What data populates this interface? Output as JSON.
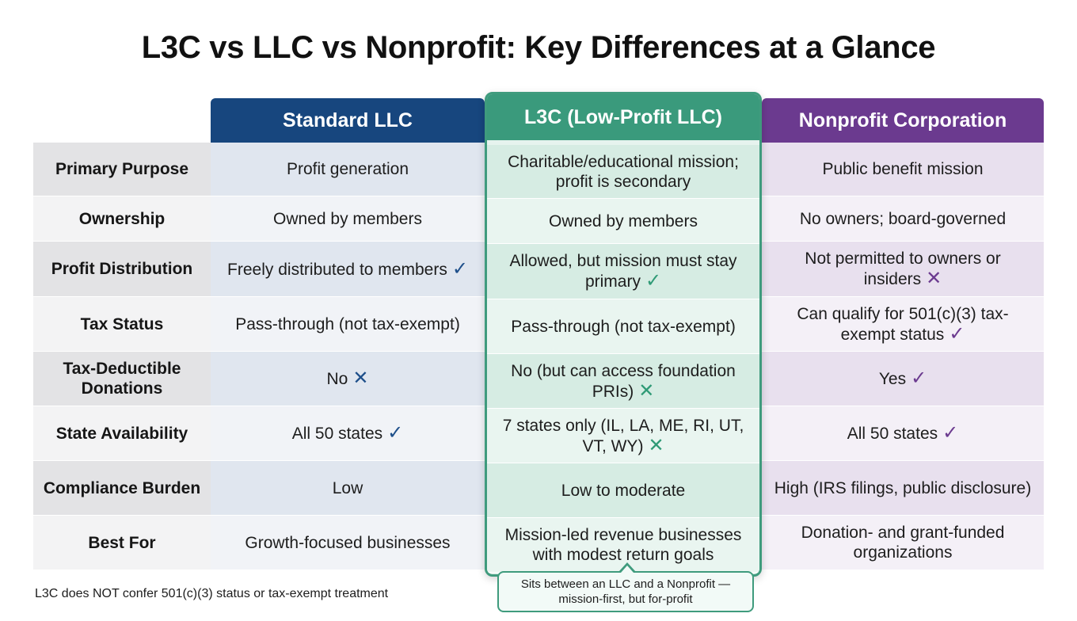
{
  "title": "L3C vs LLC vs Nonprofit: Key Differences at a Glance",
  "colors": {
    "llc": "#17467e",
    "l3c": "#3a9a7c",
    "nonprofit": "#6b3a8f"
  },
  "columns": {
    "llc": "Standard LLC",
    "l3c": "L3C (Low-Profit LLC)",
    "nonprofit": "Nonprofit Corporation"
  },
  "rows": [
    {
      "label": "Primary Purpose",
      "llc": "Profit generation",
      "llc_mark": "",
      "l3c": "Charitable/educational mission; profit is secondary",
      "l3c_mark": "",
      "nonprofit": "Public benefit mission",
      "nonprofit_mark": ""
    },
    {
      "label": "Ownership",
      "llc": "Owned by members",
      "llc_mark": "",
      "l3c": "Owned by members",
      "l3c_mark": "",
      "nonprofit": "No owners; board-governed",
      "nonprofit_mark": ""
    },
    {
      "label": "Profit Distribution",
      "llc": "Freely distributed to members",
      "llc_mark": "✓",
      "l3c": "Allowed, but mission must stay primary",
      "l3c_mark": "✓",
      "nonprofit": "Not permitted to owners or insiders",
      "nonprofit_mark": "✕"
    },
    {
      "label": "Tax Status",
      "llc": "Pass-through (not tax-exempt)",
      "llc_mark": "",
      "l3c": "Pass-through (not tax-exempt)",
      "l3c_mark": "",
      "nonprofit": "Can qualify for 501(c)(3) tax-exempt status",
      "nonprofit_mark": "✓"
    },
    {
      "label": "Tax-Deductible Donations",
      "llc": "No",
      "llc_mark": "✕",
      "l3c": "No (but can access foundation PRIs)",
      "l3c_mark": "✕",
      "nonprofit": "Yes",
      "nonprofit_mark": "✓"
    },
    {
      "label": "State Availability",
      "llc": "All 50 states",
      "llc_mark": "✓",
      "l3c": "7 states only (IL, LA, ME, RI, UT, VT, WY)",
      "l3c_mark": "✕",
      "nonprofit": "All 50 states",
      "nonprofit_mark": "✓"
    },
    {
      "label": "Compliance Burden",
      "llc": "Low",
      "llc_mark": "",
      "l3c": "Low to moderate",
      "l3c_mark": "",
      "nonprofit": "High (IRS filings, public disclosure)",
      "nonprofit_mark": ""
    },
    {
      "label": "Best For",
      "llc": "Growth-focused businesses",
      "llc_mark": "",
      "l3c": "Mission-led revenue businesses with modest return goals",
      "l3c_mark": "",
      "nonprofit": "Donation- and grant-funded organizations",
      "nonprofit_mark": ""
    }
  ],
  "callout": "Sits between an LLC and a Nonprofit — mission-first, but for-profit",
  "footnote": "L3C does NOT confer 501(c)(3) status or tax-exempt treatment"
}
